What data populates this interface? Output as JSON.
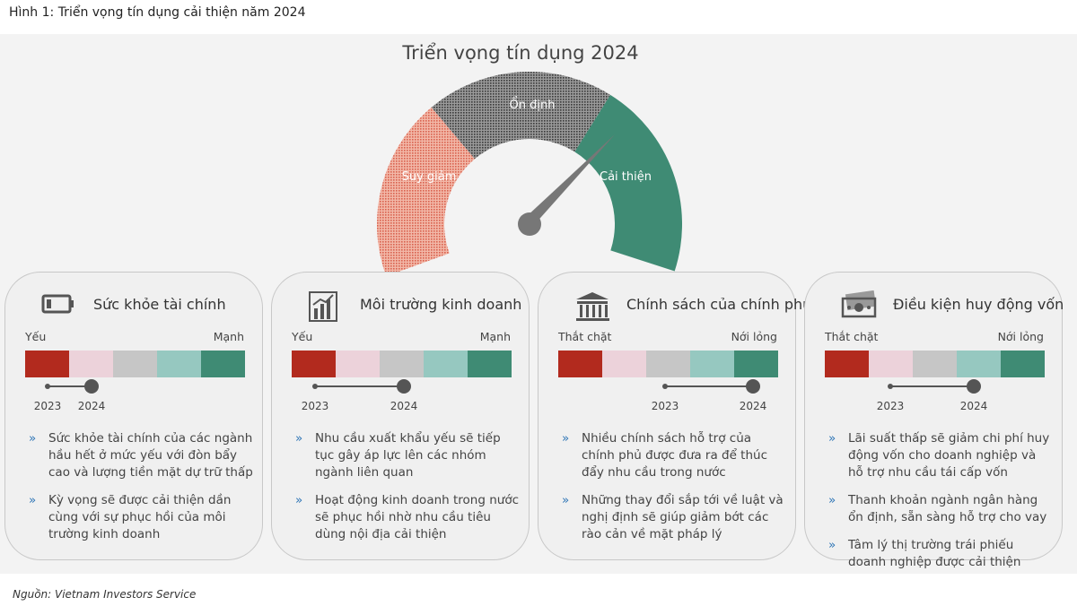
{
  "figure_title": "Hình 1: Triển vọng tín dụng cải thiện năm 2024",
  "gauge": {
    "title": "Triển vọng tín dụng 2024",
    "segments": [
      "Suy giảm",
      "Ổn định",
      "Cải thiện"
    ]
  },
  "cards": [
    {
      "title": "Sức khỏe tài chính",
      "left_label": "Yếu",
      "right_label": "Mạnh",
      "from_year": "2023",
      "to_year": "2024",
      "bullets": [
        "Sức khỏe tài chính của các ngành hầu hết ở mức yếu với đòn bẩy cao và lượng tiền mặt dự trữ thấp",
        "Kỳ vọng sẽ được cải thiện dần cùng với sự phục hồi của môi trường kinh doanh"
      ]
    },
    {
      "title": "Môi trường kinh doanh",
      "left_label": "Yếu",
      "right_label": "Mạnh",
      "from_year": "2023",
      "to_year": "2024",
      "bullets": [
        "Nhu cầu xuất khẩu yếu sẽ tiếp tục gây áp lực lên các nhóm ngành liên quan",
        "Hoạt động kinh doanh trong nước sẽ phục hồi nhờ nhu cầu tiêu dùng nội địa cải thiện"
      ]
    },
    {
      "title": "Chính sách của chính phủ",
      "left_label": "Thắt chặt",
      "right_label": "Nới lỏng",
      "from_year": "2023",
      "to_year": "2024",
      "bullets": [
        "Nhiều chính sách hỗ trợ của chính phủ được đưa ra để thúc đẩy nhu cầu trong nước",
        "Những thay đổi sắp tới về luật và nghị định sẽ giúp giảm bớt các rào cản về mặt pháp lý"
      ]
    },
    {
      "title": "Điều kiện huy động vốn",
      "left_label": "Thắt chặt",
      "right_label": "Nới lỏng",
      "from_year": "2023",
      "to_year": "2024",
      "bullets": [
        "Lãi suất thấp sẽ giảm chi phí huy động vốn cho doanh nghiệp và hỗ trợ nhu cầu tái cấp vốn",
        "Thanh khoản ngành ngân hàng ổn định, sẵn sàng hỗ trợ cho vay",
        "Tâm lý thị trường trái phiếu doanh nghiệp được cải thiện"
      ]
    }
  ],
  "source": "Nguồn: Vietnam Investors Service"
}
